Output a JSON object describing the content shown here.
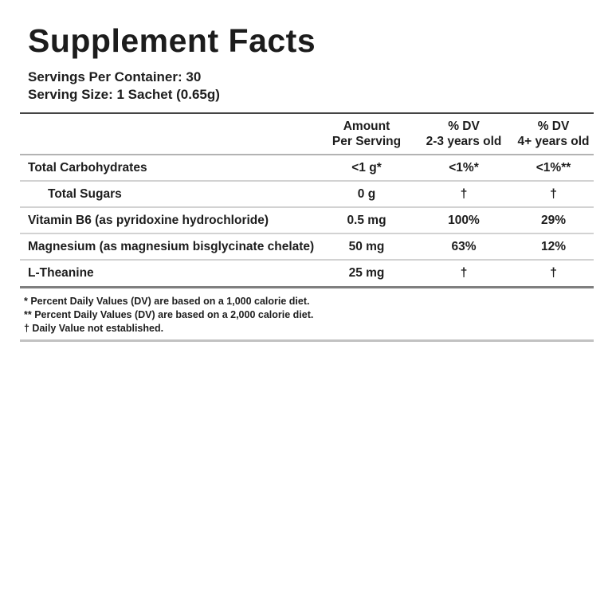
{
  "title": "Supplement Facts",
  "serving_info": {
    "servings_per_container": "Servings Per Container: 30",
    "serving_size": "Serving Size: 1 Sachet (0.65g)"
  },
  "table": {
    "headers": {
      "amount": {
        "line1": "Amount",
        "line2": "Per Serving"
      },
      "dv_2_3": {
        "line1": "% DV",
        "line2": "2-3 years old"
      },
      "dv_4plus": {
        "line1": "% DV",
        "line2": "4+ years old"
      }
    },
    "rows": [
      {
        "name": "Total Carbohydrates",
        "amount": "<1 g*",
        "dv_2_3": "<1%*",
        "dv_4plus": "<1%**"
      },
      {
        "name": "Total Sugars",
        "amount": "0 g",
        "dv_2_3": "†",
        "dv_4plus": "†"
      },
      {
        "name": "Vitamin B6 (as pyridoxine hydrochloride)",
        "amount": "0.5 mg",
        "dv_2_3": "100%",
        "dv_4plus": "29%"
      },
      {
        "name": "Magnesium (as magnesium bisglycinate chelate)",
        "amount": "50 mg",
        "dv_2_3": "63%",
        "dv_4plus": "12%"
      },
      {
        "name": "L-Theanine",
        "amount": "25 mg",
        "dv_2_3": "†",
        "dv_4plus": "†"
      }
    ]
  },
  "footnotes": [
    "* Percent Daily Values (DV) are based on a 1,000 calorie diet.",
    "** Percent Daily Values (DV) are based on a 2,000 calorie diet.",
    "† Daily Value not established."
  ],
  "colors": {
    "background": "#ffffff",
    "text": "#1d1d1d",
    "rule_dark": "#454545",
    "rule_medium": "#7f7f7f",
    "rule_header": "#b3b3b3",
    "rule_light": "#d2d2d2",
    "rule_bottom": "#c2c2c2"
  }
}
